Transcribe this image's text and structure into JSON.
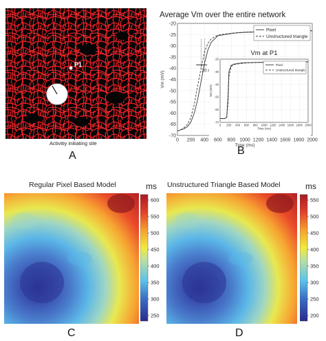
{
  "panel_a": {
    "letter": "A",
    "point_label": "P1",
    "caption": "Activitiy initiating site"
  },
  "panel_b": {
    "letter": "B",
    "title": "Average Vm over the entire network",
    "annotation": "20 ms",
    "inset_title": "Vm at P1"
  },
  "panel_c": {
    "letter": "C",
    "title": "Regular Pixel Based Model",
    "unit": "ms",
    "colorbar_ticks": [
      "600",
      "550",
      "500",
      "450",
      "400",
      "350",
      "300",
      "250"
    ]
  },
  "panel_d": {
    "letter": "D",
    "title": "Unstructured Triangle Based Model",
    "unit": "ms",
    "colorbar_ticks": [
      "550",
      "500",
      "450",
      "400",
      "350",
      "300",
      "250",
      "200"
    ]
  },
  "chart_data": [
    {
      "type": "line",
      "title": "Average Vm over the entire network",
      "xlabel": "Time (ms)",
      "ylabel": "Vm (mV)",
      "xlim": [
        0,
        2000
      ],
      "ylim": [
        -70,
        -20
      ],
      "xticks": [
        0,
        200,
        400,
        600,
        800,
        1000,
        1200,
        1400,
        1600,
        1800,
        2000
      ],
      "yticks": [
        -20,
        -25,
        -30,
        -35,
        -40,
        -45,
        -50,
        -55,
        -60,
        -65,
        -70
      ],
      "legend_position": "top-right",
      "series": [
        {
          "name": "Pixel",
          "style": "solid",
          "x": [
            0,
            50,
            100,
            150,
            200,
            250,
            300,
            350,
            400,
            450,
            500,
            550,
            600,
            700,
            800,
            900,
            1000,
            1200,
            1400,
            1600,
            1800,
            2000
          ],
          "y": [
            -68,
            -67.5,
            -67,
            -66,
            -64,
            -60,
            -54,
            -46,
            -38,
            -32,
            -28.5,
            -27,
            -25.5,
            -25,
            -24.5,
            -24.2,
            -24,
            -23.8,
            -23.6,
            -23.5,
            -23.4,
            -23.3
          ]
        },
        {
          "name": "Unstructured triangle",
          "style": "dashed",
          "x": [
            0,
            50,
            100,
            150,
            200,
            250,
            300,
            350,
            400,
            450,
            500,
            550,
            600,
            700,
            800,
            900,
            1000,
            1200,
            1400,
            1600,
            1800,
            2000
          ],
          "y": [
            -68,
            -67.5,
            -66.5,
            -65,
            -62,
            -56,
            -48,
            -40,
            -33,
            -29,
            -27,
            -26,
            -25.3,
            -24.8,
            -24.4,
            -24.1,
            -23.9,
            -23.7,
            -23.5,
            -23.4,
            -23.3,
            -23.2
          ]
        }
      ]
    },
    {
      "type": "line",
      "title": "Vm at P1",
      "xlabel": "Time (ms)",
      "ylabel": "Vm (mV)",
      "xlim": [
        0,
        2000
      ],
      "ylim": [
        -70,
        -20
      ],
      "xticks": [
        0,
        200,
        400,
        600,
        800,
        1000,
        1200,
        1400,
        1600,
        1800,
        2000
      ],
      "yticks": [
        -20,
        -30,
        -40,
        -50,
        -60,
        -70
      ],
      "legend_position": "top-right",
      "series": [
        {
          "name": "Pixel",
          "style": "solid",
          "x": [
            0,
            100,
            150,
            180,
            200,
            250,
            300,
            400,
            500,
            600,
            800,
            1000,
            1200,
            1400,
            1600,
            1800,
            2000
          ],
          "y": [
            -67,
            -67,
            -66,
            -50,
            -30,
            -25,
            -24,
            -23.5,
            -23,
            -22.8,
            -22.6,
            -22.5,
            -22.4,
            -22.3,
            -22.2,
            -22.1,
            -22
          ]
        },
        {
          "name": "Unstructured triangle",
          "style": "dashed",
          "x": [
            0,
            100,
            150,
            180,
            200,
            250,
            300,
            400,
            500,
            600,
            800,
            1000,
            1200,
            1400,
            1600,
            1800,
            2000
          ],
          "y": [
            -67,
            -67,
            -66.5,
            -55,
            -34,
            -26,
            -24.5,
            -23.8,
            -23.3,
            -23,
            -22.7,
            -22.6,
            -22.5,
            -22.4,
            -22.3,
            -22.2,
            -22.1
          ]
        }
      ]
    },
    {
      "type": "heatmap",
      "title": "Regular Pixel Based Model",
      "colorbar_label": "ms",
      "colorbar_range": [
        230,
        620
      ]
    },
    {
      "type": "heatmap",
      "title": "Unstructured Triangle Based Model",
      "colorbar_label": "ms",
      "colorbar_range": [
        200,
        580
      ]
    }
  ]
}
